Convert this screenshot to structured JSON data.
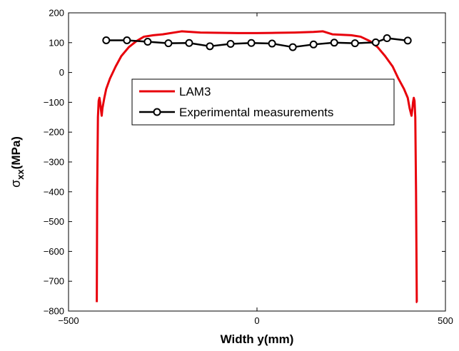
{
  "chart_data": {
    "type": "line",
    "xlabel": "Width y(mm)",
    "ylabel_main": "σ",
    "ylabel_sub": "xx",
    "ylabel_unit": "(MPa)",
    "xlim": [
      -500,
      500
    ],
    "ylim": [
      -800,
      200
    ],
    "x_ticks": [
      -500,
      0,
      500
    ],
    "x_tick_labels": [
      "−500",
      "0",
      "500"
    ],
    "y_ticks": [
      200,
      100,
      0,
      -100,
      -200,
      -300,
      -400,
      -500,
      -600,
      -700,
      -800
    ],
    "y_tick_labels": [
      "200",
      "100",
      "0",
      "−100",
      "−200",
      "−300",
      "−400",
      "−500",
      "−600",
      "−700",
      "−800"
    ],
    "grid": false,
    "legend_position": "upper-center",
    "series": [
      {
        "name": "LAM3",
        "color": "#e8000b",
        "marker": "none",
        "x": [
          -425,
          -424,
          -422,
          -420,
          -418,
          -416,
          -414,
          -412,
          -410,
          -405,
          -400,
          -390,
          -375,
          -360,
          -340,
          -320,
          -300,
          -275,
          -250,
          -200,
          -175,
          -150,
          -100,
          -50,
          0,
          50,
          100,
          150,
          175,
          200,
          250,
          275,
          300,
          320,
          340,
          360,
          375,
          390,
          400,
          405,
          410,
          412,
          414,
          416,
          418,
          420,
          422,
          424,
          425
        ],
        "y": [
          -770,
          -400,
          -150,
          -95,
          -85,
          -100,
          -125,
          -145,
          -120,
          -85,
          -55,
          -20,
          20,
          55,
          85,
          105,
          120,
          125,
          128,
          138,
          136,
          134,
          133,
          132,
          132,
          133,
          134,
          136,
          138,
          128,
          125,
          120,
          105,
          85,
          55,
          20,
          -20,
          -55,
          -85,
          -120,
          -145,
          -125,
          -100,
          -85,
          -95,
          -150,
          -400,
          -770,
          -770
        ]
      },
      {
        "name": "Experimental measurements",
        "color": "#000000",
        "marker": "circle",
        "x": [
          -400,
          -345,
          -290,
          -235,
          -180,
          -125,
          -70,
          -15,
          40,
          95,
          150,
          205,
          260,
          315,
          345,
          400
        ],
        "y": [
          108,
          108,
          103,
          98,
          99,
          88,
          96,
          99,
          97,
          85,
          94,
          100,
          98,
          101,
          115,
          107
        ]
      }
    ]
  }
}
